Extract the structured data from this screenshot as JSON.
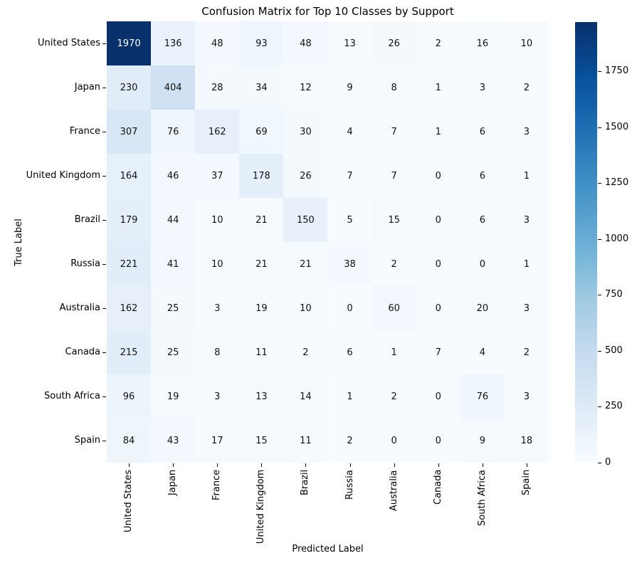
{
  "title": "Confusion Matrix for Top 10 Classes by Support",
  "chart_data": {
    "type": "heatmap",
    "title": "Confusion Matrix for Top 10 Classes by Support",
    "xlabel": "Predicted Label",
    "ylabel": "True Label",
    "x_tick_labels": [
      "United States",
      "Japan",
      "France",
      "United Kingdom",
      "Brazil",
      "Russia",
      "Australia",
      "Canada",
      "South Africa",
      "Spain"
    ],
    "y_tick_labels": [
      "United States",
      "Japan",
      "France",
      "United Kingdom",
      "Brazil",
      "Russia",
      "Australia",
      "Canada",
      "South Africa",
      "Spain"
    ],
    "matrix": [
      [
        1970,
        136,
        48,
        93,
        48,
        13,
        26,
        2,
        16,
        10
      ],
      [
        230,
        404,
        28,
        34,
        12,
        9,
        8,
        1,
        3,
        2
      ],
      [
        307,
        76,
        162,
        69,
        30,
        4,
        7,
        1,
        6,
        3
      ],
      [
        164,
        46,
        37,
        178,
        26,
        7,
        7,
        0,
        6,
        1
      ],
      [
        179,
        44,
        10,
        21,
        150,
        5,
        15,
        0,
        6,
        3
      ],
      [
        221,
        41,
        10,
        21,
        21,
        38,
        2,
        0,
        0,
        1
      ],
      [
        162,
        25,
        3,
        19,
        10,
        0,
        60,
        0,
        20,
        3
      ],
      [
        215,
        25,
        8,
        11,
        2,
        6,
        1,
        7,
        4,
        2
      ],
      [
        96,
        19,
        3,
        13,
        14,
        1,
        2,
        0,
        76,
        3
      ],
      [
        84,
        43,
        17,
        15,
        11,
        2,
        0,
        0,
        9,
        18
      ]
    ],
    "vmin": 0,
    "vmax": 1970,
    "colormap": "Blues",
    "colormap_anchors": [
      "#f7fbff",
      "#deebf7",
      "#c6dbef",
      "#9ecae1",
      "#6baed6",
      "#4292c6",
      "#2171b5",
      "#08519c",
      "#08306b"
    ],
    "colorbar_ticks": [
      0,
      250,
      500,
      750,
      1000,
      1250,
      1500,
      1750
    ],
    "legend_position": "right-colorbar",
    "grid": false,
    "annotation_color_dark": "#111111",
    "annotation_color_light": "#ffffff",
    "background": "#ffffff"
  }
}
